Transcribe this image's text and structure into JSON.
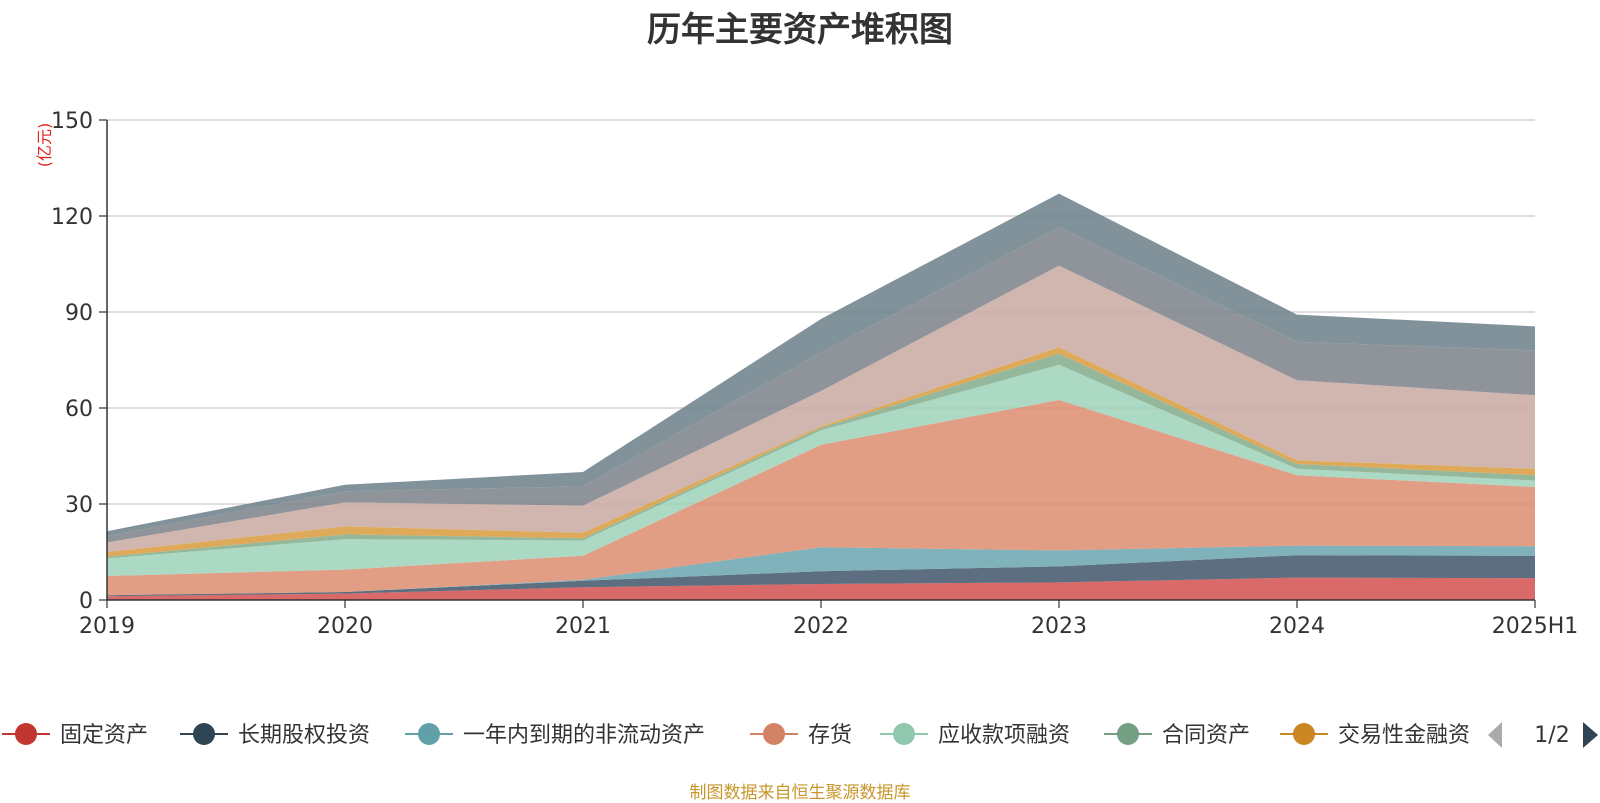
{
  "chart_data": {
    "type": "area",
    "stacked": true,
    "title": "历年主要资产堆积图",
    "unit_label": "(亿元)",
    "categories": [
      "2019",
      "2020",
      "2021",
      "2022",
      "2023",
      "2024",
      "2025H1"
    ],
    "ylim": [
      0,
      150
    ],
    "yticks": [
      0,
      30,
      60,
      90,
      120,
      150
    ],
    "grid": true,
    "series": [
      {
        "name": "固定资产",
        "values": [
          1.2,
          2.0,
          4.0,
          5.0,
          5.5,
          7.0,
          6.8
        ]
      },
      {
        "name": "长期股权投资",
        "values": [
          0.3,
          0.5,
          2.0,
          4.0,
          5.0,
          7.0,
          7.0
        ]
      },
      {
        "name": "一年内到期的非流动资产",
        "values": [
          0,
          0,
          0.3,
          7.5,
          5.0,
          3.0,
          3.0
        ]
      },
      {
        "name": "存货",
        "values": [
          6.0,
          7.0,
          7.5,
          32.0,
          47.0,
          22.0,
          18.5
        ]
      },
      {
        "name": "应收款项融资",
        "values": [
          5.5,
          9.5,
          4.8,
          4.5,
          11.0,
          2.0,
          2.0
        ]
      },
      {
        "name": "合同资产",
        "values": [
          0.5,
          1.5,
          0.7,
          0.8,
          3.5,
          1.5,
          1.7
        ]
      },
      {
        "name": "交易性金融资",
        "values": [
          1.5,
          2.5,
          1.7,
          0.5,
          2.0,
          1.2,
          2.0
        ]
      },
      {
        "values": [
          3.0,
          7.5,
          8.5,
          11.0,
          25.5,
          25.0,
          23.0
        ]
      },
      {
        "values": [
          2.0,
          3.5,
          6.0,
          12.0,
          12.0,
          12.0,
          14.0
        ]
      },
      {
        "values": [
          1.5,
          2.0,
          4.5,
          10.5,
          10.5,
          8.5,
          7.5
        ]
      }
    ],
    "colors": [
      "#d2504f",
      "#3f5568",
      "#6aa4b0",
      "#dd8c70",
      "#9ed2b8",
      "#83ab8c",
      "#d89b3c",
      "#c9a9a2",
      "#7a8188",
      "#6b7f8a"
    ],
    "legend": {
      "position": "bottom",
      "items": [
        {
          "label": "固定资产",
          "color": "#c23531"
        },
        {
          "label": "长期股权投资",
          "color": "#2f4554"
        },
        {
          "label": "一年内到期的非流动资产",
          "color": "#61a0a8"
        },
        {
          "label": "存货",
          "color": "#d48265"
        },
        {
          "label": "应收款项融资",
          "color": "#91c7ae"
        },
        {
          "label": "合同资产",
          "color": "#749f83"
        },
        {
          "label": "交易性金融资",
          "color": "#ca8622"
        }
      ],
      "page": "1/2"
    },
    "source_note": "制图数据来自恒生聚源数据库"
  }
}
